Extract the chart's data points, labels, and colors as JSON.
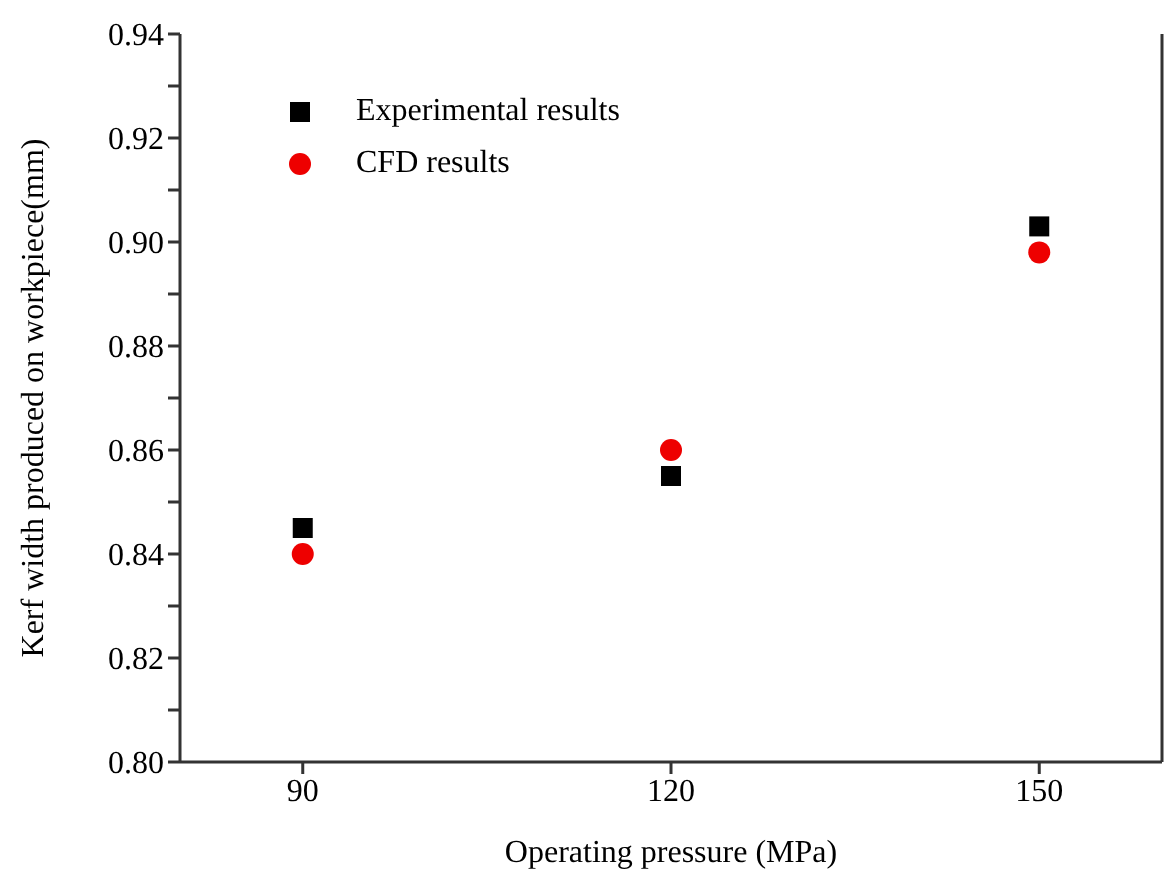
{
  "chart_data": {
    "type": "scatter",
    "xlabel": "Operating pressure (MPa)",
    "ylabel": "Kerf width produced on workpiece(mm)",
    "x": [
      90,
      120,
      150
    ],
    "series": [
      {
        "name": "Experimental results",
        "color": "#000000",
        "marker": "square",
        "values": [
          0.845,
          0.855,
          0.903
        ]
      },
      {
        "name": "CFD results",
        "color": "#ee0000",
        "marker": "circle",
        "values": [
          0.84,
          0.86,
          0.898
        ]
      }
    ],
    "xlim": [
      80,
      160
    ],
    "xticks": [
      90,
      120,
      150
    ],
    "ylim": [
      0.8,
      0.94
    ],
    "yticks": [
      {
        "value": 0.8,
        "label": "0.80"
      },
      {
        "value": 0.81,
        "label": null
      },
      {
        "value": 0.82,
        "label": "0.82"
      },
      {
        "value": 0.83,
        "label": null
      },
      {
        "value": 0.84,
        "label": "0.84"
      },
      {
        "value": 0.85,
        "label": null
      },
      {
        "value": 0.86,
        "label": "0.86"
      },
      {
        "value": 0.87,
        "label": null
      },
      {
        "value": 0.88,
        "label": "0.88"
      },
      {
        "value": 0.89,
        "label": null
      },
      {
        "value": 0.9,
        "label": "0.90"
      },
      {
        "value": 0.91,
        "label": null
      },
      {
        "value": 0.92,
        "label": "0.92"
      },
      {
        "value": 0.93,
        "label": null
      },
      {
        "value": 0.94,
        "label": "0.94"
      }
    ],
    "legend": "top left",
    "grid": false
  }
}
